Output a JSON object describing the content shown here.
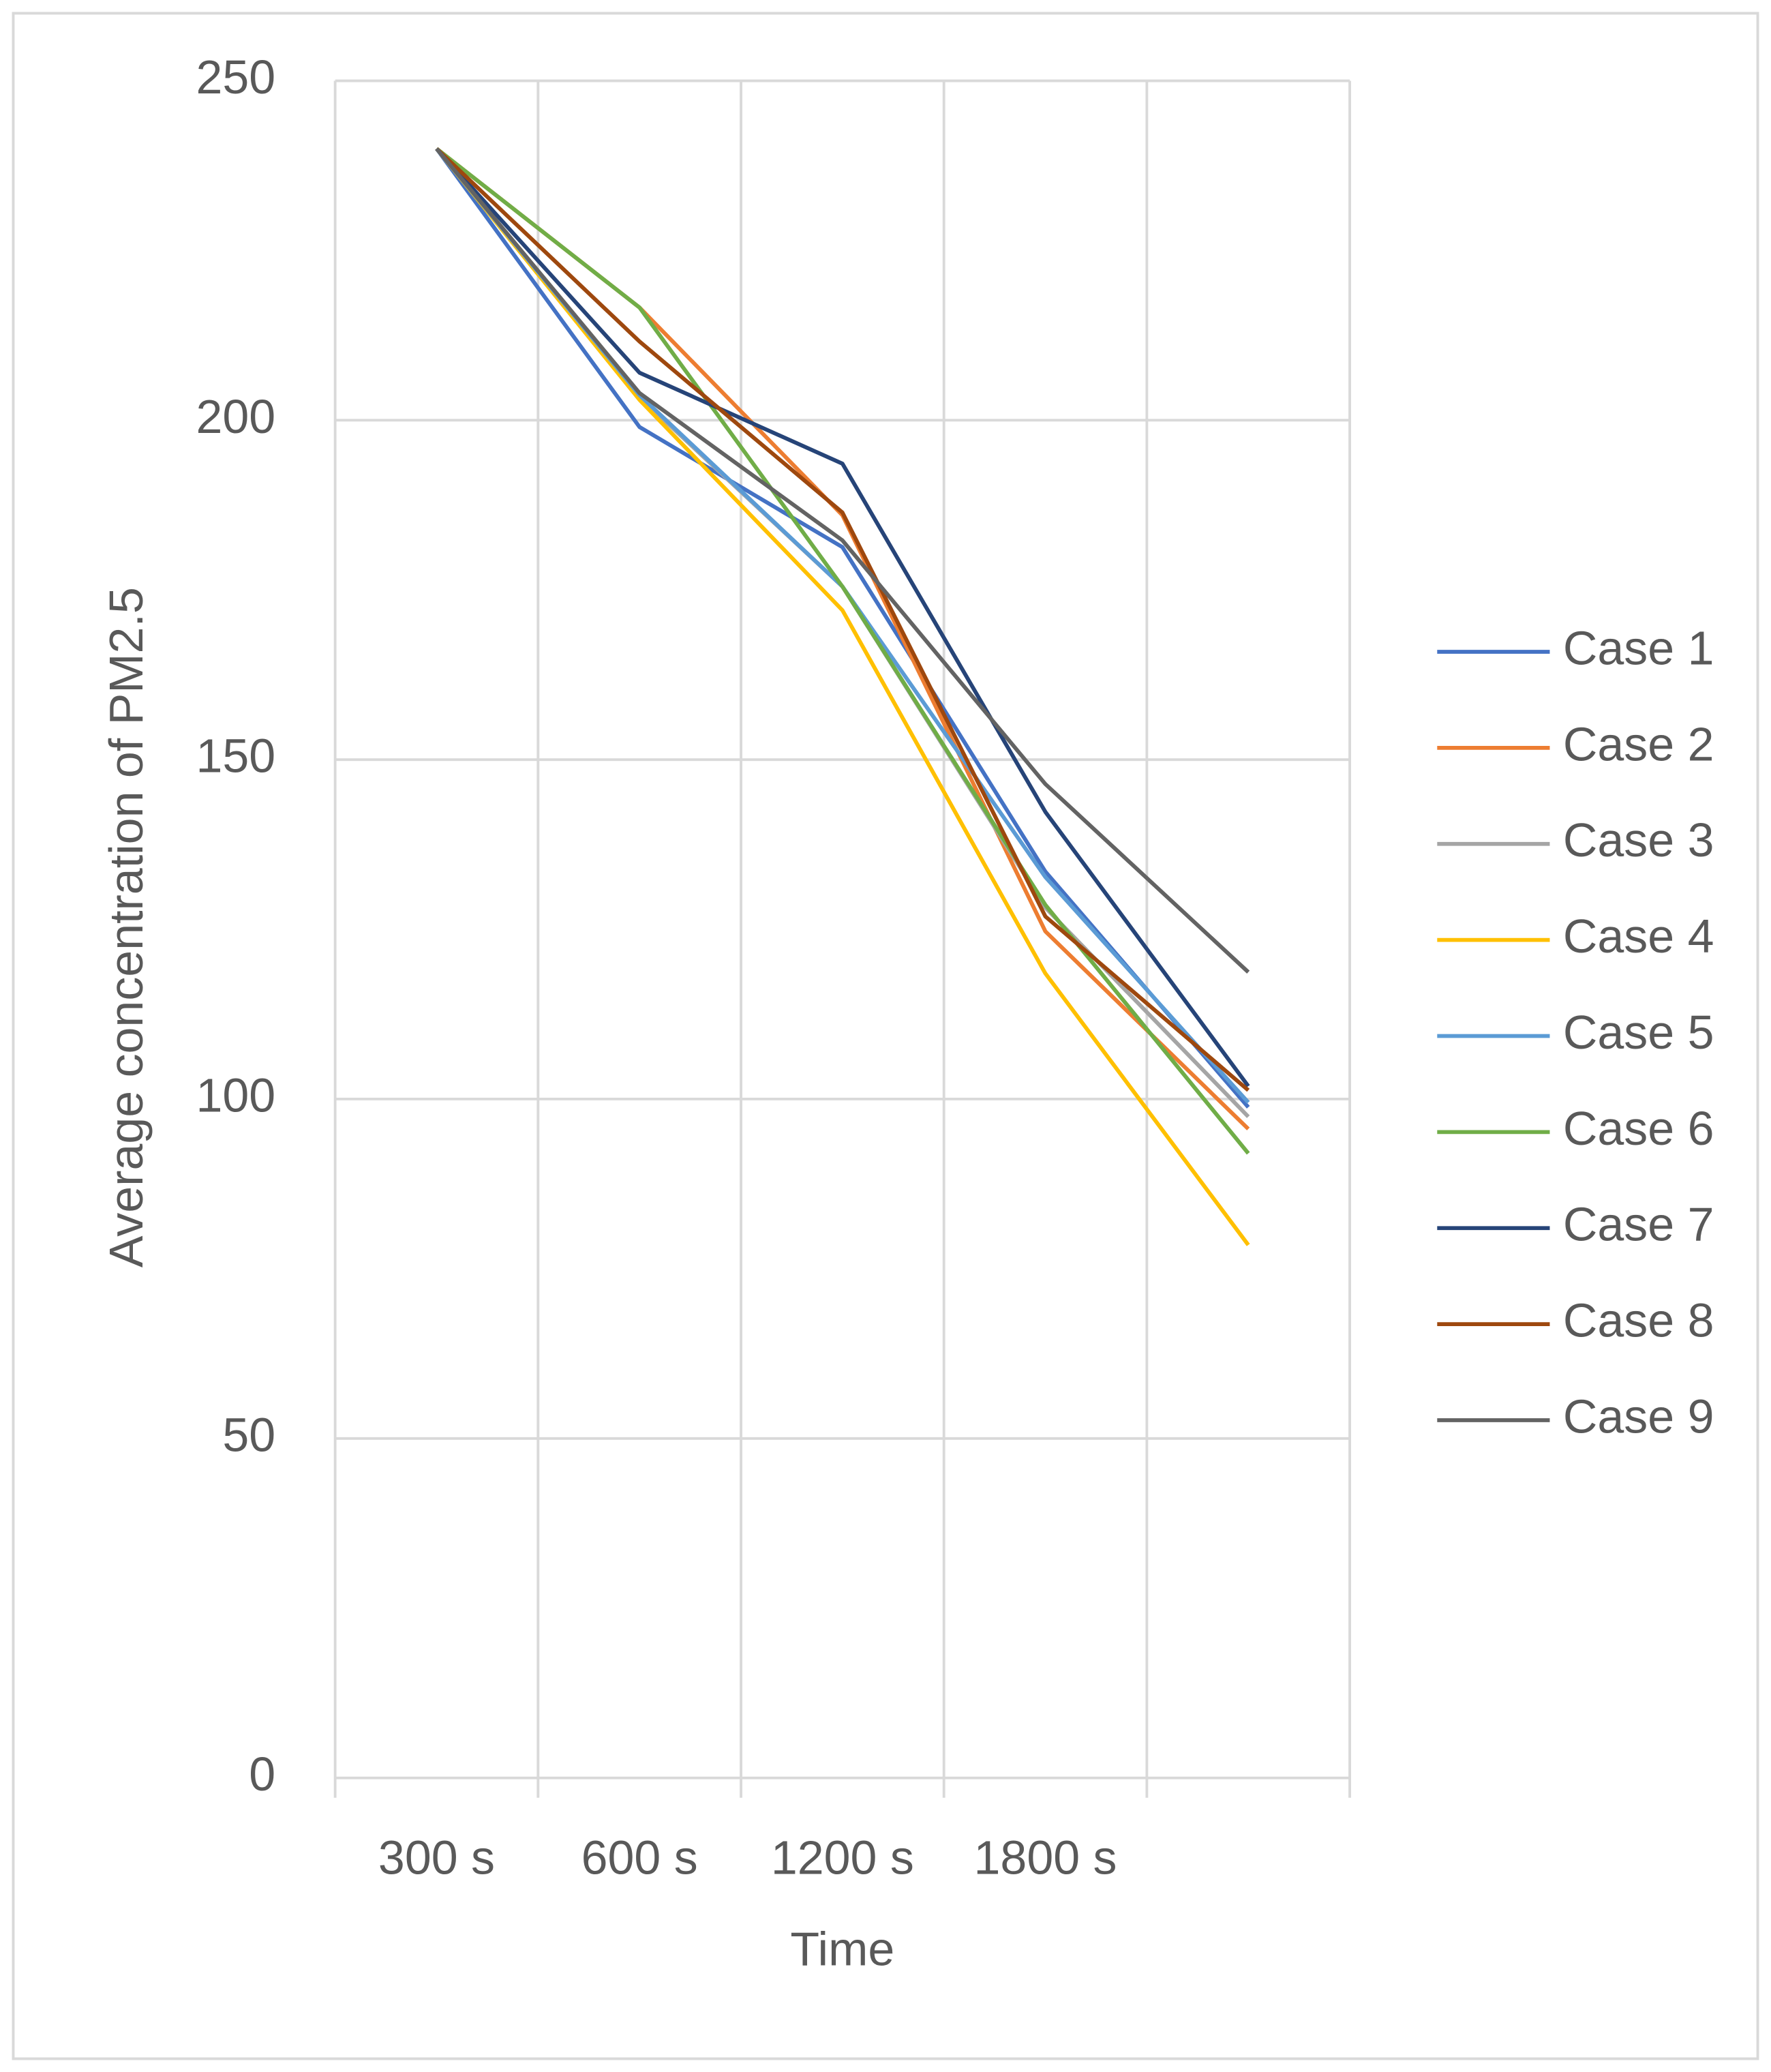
{
  "chart_data": {
    "type": "line",
    "x_label": "Time",
    "y_label": "Average concentration of PM2.5",
    "categories": [
      "300 s",
      "600 s",
      "1200 s",
      "1800 s",
      null
    ],
    "ylim": [
      0,
      250
    ],
    "yticks": [
      0,
      50,
      100,
      150,
      200,
      250
    ],
    "grid": true,
    "legend": "right",
    "series": [
      {
        "name": "Case 1",
        "color": "#4472c4",
        "values": [
          240,
          199,
          181.3,
          133.5,
          98.8
        ]
      },
      {
        "name": "Case 2",
        "color": "#ed7d31",
        "values": [
          240,
          216.6,
          186,
          124.7,
          95.6
        ]
      },
      {
        "name": "Case 3",
        "color": "#a5a5a5",
        "values": [
          240,
          203.4,
          175.5,
          128.2,
          97.4
        ]
      },
      {
        "name": "Case 4",
        "color": "#ffc000",
        "values": [
          240,
          203,
          172,
          118.5,
          78.5
        ]
      },
      {
        "name": "Case 5",
        "color": "#5b9bd5",
        "values": [
          240,
          203.7,
          175.5,
          132.7,
          99.5
        ]
      },
      {
        "name": "Case 6",
        "color": "#70ad47",
        "values": [
          240,
          216.6,
          175.5,
          128.6,
          92
        ]
      },
      {
        "name": "Case 7",
        "color": "#264478",
        "values": [
          240,
          207,
          193.6,
          142.3,
          101.9
        ]
      },
      {
        "name": "Case 8",
        "color": "#9e480e",
        "values": [
          240,
          211.6,
          186.4,
          126.9,
          101.3
        ]
      },
      {
        "name": "Case 9",
        "color": "#636363",
        "values": [
          240,
          204,
          182.3,
          146.4,
          118.7
        ]
      }
    ]
  }
}
